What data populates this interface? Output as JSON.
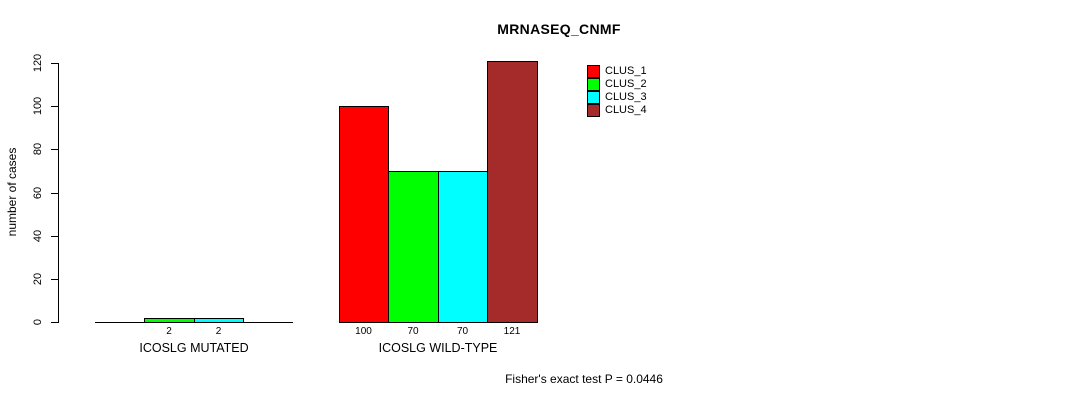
{
  "title": "MRNASEQ_CNMF",
  "footer": "Fisher's exact test P = 0.0446",
  "y_axis": {
    "label": "number of cases",
    "ticks": [
      "0",
      "20",
      "40",
      "60",
      "80",
      "100",
      "120"
    ]
  },
  "legend": {
    "entries": [
      {
        "label": "CLUS_1",
        "color": "#ff0000"
      },
      {
        "label": "CLUS_2",
        "color": "#00ff00"
      },
      {
        "label": "CLUS_3",
        "color": "#00ffff"
      },
      {
        "label": "CLUS_4",
        "color": "#a52a2a"
      }
    ]
  },
  "chart_data": {
    "type": "bar",
    "title": "MRNASEQ_CNMF",
    "ylabel": "number of cases",
    "ylim": [
      0,
      120
    ],
    "y_ticks": [
      0,
      20,
      40,
      60,
      80,
      100,
      120
    ],
    "grid": false,
    "legend_position": "top-right",
    "categories": [
      "ICOSLG MUTATED",
      "ICOSLG WILD-TYPE"
    ],
    "series": [
      {
        "name": "CLUS_1",
        "color": "#ff0000",
        "values": [
          0,
          100
        ]
      },
      {
        "name": "CLUS_2",
        "color": "#00ff00",
        "values": [
          2,
          70
        ]
      },
      {
        "name": "CLUS_3",
        "color": "#00ffff",
        "values": [
          2,
          70
        ]
      },
      {
        "name": "CLUS_4",
        "color": "#a52a2a",
        "values": [
          0,
          121
        ]
      }
    ],
    "bar_value_labels": [
      [
        "",
        "2",
        "2",
        ""
      ],
      [
        "100",
        "70",
        "70",
        "121"
      ]
    ],
    "annotation": "Fisher's exact test P = 0.0446"
  }
}
